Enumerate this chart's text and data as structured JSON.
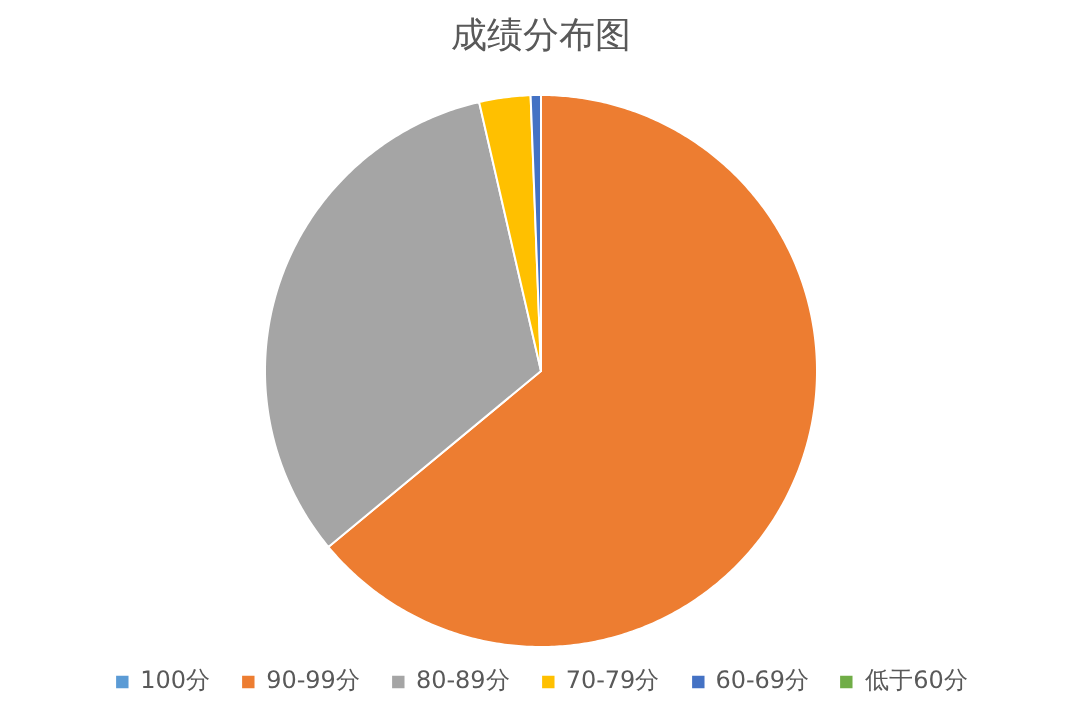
{
  "chart_data": {
    "type": "pie",
    "title": "成绩分布图",
    "categories": [
      "100分",
      "90-99分",
      "80-89分",
      "70-79分",
      "60-69分",
      "低于60分"
    ],
    "values": [
      0,
      64,
      32.4,
      3,
      0.6,
      0
    ],
    "colors": [
      "#5b9bd5",
      "#ed7d31",
      "#a5a5a5",
      "#ffc000",
      "#4472c4",
      "#70ad47"
    ],
    "legend": "bottom"
  }
}
